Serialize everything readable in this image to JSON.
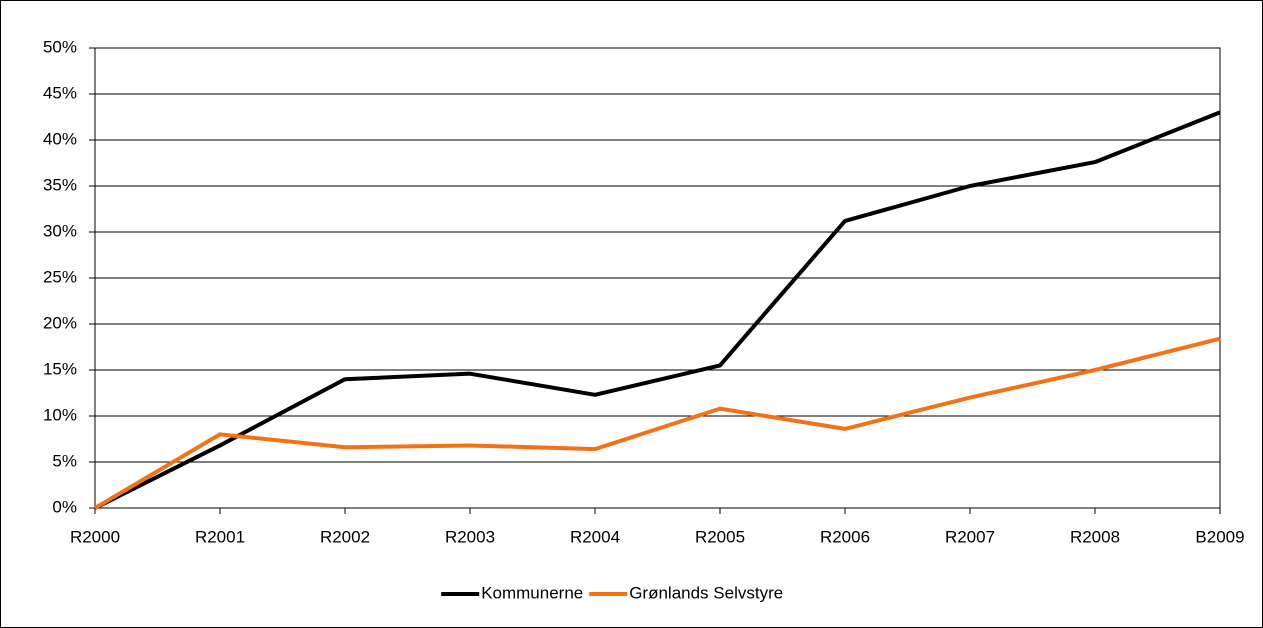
{
  "chart_data": {
    "type": "line",
    "categories": [
      "R2000",
      "R2001",
      "R2002",
      "R2003",
      "R2004",
      "R2005",
      "R2006",
      "R2007",
      "R2008",
      "B2009"
    ],
    "series": [
      {
        "name": "Kommunerne",
        "color": "#000000",
        "values": [
          0,
          6.8,
          14,
          14.6,
          12.3,
          15.5,
          31.2,
          35,
          37.6,
          43
        ]
      },
      {
        "name": "Grønlands Selvstyre",
        "color": "#f47216",
        "values": [
          0,
          8,
          6.6,
          6.8,
          6.4,
          10.8,
          8.6,
          12,
          15,
          18.4
        ]
      }
    ],
    "ylim": [
      0,
      50
    ],
    "yticks": [
      {
        "value": 0,
        "label": "0%"
      },
      {
        "value": 5,
        "label": "5%"
      },
      {
        "value": 10,
        "label": "10%"
      },
      {
        "value": 15,
        "label": "15%"
      },
      {
        "value": 20,
        "label": "20%"
      },
      {
        "value": 25,
        "label": "25%"
      },
      {
        "value": 30,
        "label": "30%"
      },
      {
        "value": 35,
        "label": "35%"
      },
      {
        "value": 40,
        "label": "40%"
      },
      {
        "value": 45,
        "label": "45%"
      },
      {
        "value": 50,
        "label": "50%"
      }
    ],
    "grid": true,
    "legend": "bottom"
  }
}
